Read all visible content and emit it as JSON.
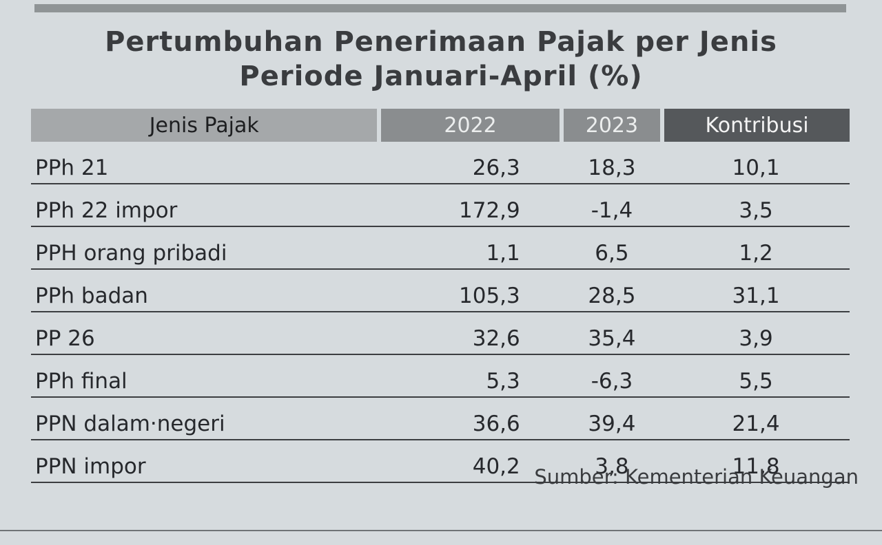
{
  "header": {
    "title": [
      "Pertumbuhan Penerimaan Pajak per Jenis",
      "Periode Januari-April (%)"
    ]
  },
  "table": {
    "columns": [
      "Jenis Pajak",
      "2022",
      "2023",
      "Kontribusi"
    ],
    "rows": [
      [
        "PPh 21",
        "26,3",
        "18,3",
        "10,1"
      ],
      [
        "PPh 22 impor",
        "172,9",
        "-1,4",
        "3,5"
      ],
      [
        "PPH orang pribadi",
        "1,1",
        "6,5",
        "1,2"
      ],
      [
        "PPh badan",
        "105,3",
        "28,5",
        "31,1"
      ],
      [
        "PP 26",
        "32,6",
        "35,4",
        "3,9"
      ],
      [
        "PPh final",
        "5,3",
        "-6,3",
        "5,5"
      ],
      [
        "PPN dalam·negeri",
        "36,6",
        "39,4",
        "21,4"
      ],
      [
        "PPN impor",
        "40,2",
        "3,8",
        "11,8"
      ]
    ]
  },
  "footer": {
    "source": "Sumber: Kementerian Keuangan"
  }
}
